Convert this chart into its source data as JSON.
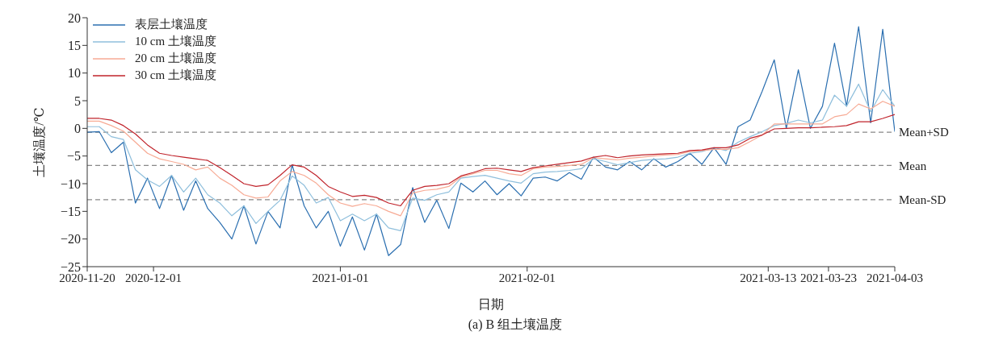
{
  "chart_data": {
    "type": "line",
    "title": "(a) B 组土壤温度",
    "xlabel": "日期",
    "ylabel": "土壤温度/℃",
    "x": [
      "2020-11-20",
      "2020-11-22",
      "2020-11-24",
      "2020-11-26",
      "2020-11-28",
      "2020-11-30",
      "2020-12-02",
      "2020-12-04",
      "2020-12-06",
      "2020-12-08",
      "2020-12-10",
      "2020-12-12",
      "2020-12-14",
      "2020-12-16",
      "2020-12-18",
      "2020-12-20",
      "2020-12-22",
      "2020-12-24",
      "2020-12-26",
      "2020-12-28",
      "2020-12-30",
      "2021-01-01",
      "2021-01-03",
      "2021-01-05",
      "2021-01-07",
      "2021-01-09",
      "2021-01-11",
      "2021-01-13",
      "2021-01-15",
      "2021-01-17",
      "2021-01-19",
      "2021-01-21",
      "2021-01-23",
      "2021-01-25",
      "2021-01-27",
      "2021-01-29",
      "2021-01-31",
      "2021-02-02",
      "2021-02-04",
      "2021-02-06",
      "2021-02-08",
      "2021-02-10",
      "2021-02-12",
      "2021-02-14",
      "2021-02-16",
      "2021-02-18",
      "2021-02-20",
      "2021-02-22",
      "2021-02-24",
      "2021-02-26",
      "2021-02-28",
      "2021-03-02",
      "2021-03-04",
      "2021-03-06",
      "2021-03-08",
      "2021-03-10",
      "2021-03-12",
      "2021-03-14",
      "2021-03-16",
      "2021-03-18",
      "2021-03-20",
      "2021-03-22",
      "2021-03-24",
      "2021-03-26",
      "2021-03-28",
      "2021-03-30",
      "2021-04-01",
      "2021-04-03"
    ],
    "series": [
      {
        "name": "表层土壤温度",
        "color": "#2b6fb0",
        "values": [
          -0.7,
          -0.6,
          -4.4,
          -2.5,
          -13.5,
          -9.0,
          -14.5,
          -8.5,
          -14.8,
          -9.5,
          -14.5,
          -17.0,
          -20.0,
          -14.0,
          -20.9,
          -15.0,
          -18.0,
          -6.6,
          -14.0,
          -18.0,
          -15.0,
          -21.3,
          -16.0,
          -22.0,
          -15.5,
          -23.0,
          -21.0,
          -10.7,
          -17.0,
          -13.0,
          -18.1,
          -9.9,
          -11.5,
          -9.5,
          -12.0,
          -10.0,
          -12.2,
          -9.0,
          -8.8,
          -9.5,
          -8.0,
          -9.2,
          -5.2,
          -7.0,
          -7.5,
          -6.0,
          -7.5,
          -5.5,
          -7.0,
          -6.0,
          -4.5,
          -6.5,
          -3.5,
          -6.5,
          0.3,
          1.5,
          6.7,
          12.4,
          0.0,
          10.6,
          0.0,
          4.0,
          15.4,
          4.0,
          18.4,
          1.0,
          17.9,
          -0.6
        ]
      },
      {
        "name": "10 cm 土壤温度",
        "color": "#8fbfdc",
        "values": [
          0.3,
          0.3,
          -1.5,
          -2.0,
          -7.5,
          -9.3,
          -10.5,
          -8.5,
          -11.5,
          -9.0,
          -12.0,
          -13.5,
          -15.8,
          -14.0,
          -17.2,
          -15.0,
          -13.0,
          -8.6,
          -10.3,
          -13.5,
          -12.5,
          -16.7,
          -15.5,
          -16.7,
          -15.5,
          -18.0,
          -18.5,
          -12.6,
          -13.0,
          -12.0,
          -11.5,
          -9.0,
          -8.7,
          -8.5,
          -9.0,
          -9.5,
          -9.9,
          -8.2,
          -7.9,
          -7.8,
          -7.6,
          -7.3,
          -5.5,
          -6.0,
          -6.6,
          -6.2,
          -5.8,
          -5.6,
          -5.5,
          -5.2,
          -4.5,
          -4.2,
          -3.5,
          -4.0,
          -2.5,
          -1.5,
          -0.6,
          0.5,
          0.9,
          1.5,
          1.0,
          1.5,
          6.0,
          4.0,
          8.0,
          3.0,
          7.0,
          4.0
        ]
      },
      {
        "name": "20 cm 土壤温度",
        "color": "#f7aa94",
        "values": [
          1.3,
          1.3,
          0.5,
          -0.5,
          -2.5,
          -4.5,
          -5.5,
          -6.0,
          -6.5,
          -7.5,
          -7.0,
          -9.0,
          -10.3,
          -12.0,
          -12.6,
          -12.4,
          -9.5,
          -7.8,
          -8.5,
          -9.9,
          -12.0,
          -13.5,
          -14.1,
          -13.6,
          -14.0,
          -15.0,
          -15.8,
          -11.7,
          -11.2,
          -11.0,
          -10.5,
          -8.8,
          -8.2,
          -7.6,
          -7.6,
          -8.2,
          -8.5,
          -7.3,
          -7.0,
          -6.9,
          -6.7,
          -6.5,
          -5.3,
          -5.5,
          -5.7,
          -5.4,
          -5.2,
          -5.0,
          -4.8,
          -4.7,
          -4.2,
          -4.0,
          -3.8,
          -3.8,
          -3.5,
          -2.4,
          -1.2,
          0.8,
          0.8,
          0.8,
          0.8,
          0.8,
          2.1,
          2.5,
          4.4,
          3.5,
          4.9,
          4.0
        ]
      },
      {
        "name": "30 cm 土壤温度",
        "color": "#c0232b",
        "values": [
          1.8,
          1.8,
          1.5,
          0.5,
          -1.0,
          -3.0,
          -4.5,
          -4.9,
          -5.2,
          -5.5,
          -5.8,
          -7.1,
          -8.5,
          -10.0,
          -10.5,
          -10.2,
          -8.5,
          -6.6,
          -7.0,
          -8.5,
          -10.5,
          -11.5,
          -12.3,
          -12.1,
          -12.5,
          -13.5,
          -14.0,
          -11.2,
          -10.5,
          -10.3,
          -10.0,
          -8.6,
          -8.0,
          -7.3,
          -7.2,
          -7.5,
          -7.8,
          -7.1,
          -6.8,
          -6.5,
          -6.2,
          -5.9,
          -5.2,
          -4.9,
          -5.3,
          -5.0,
          -4.8,
          -4.7,
          -4.6,
          -4.5,
          -4.0,
          -3.9,
          -3.5,
          -3.5,
          -3.0,
          -1.8,
          -1.2,
          -0.1,
          0.0,
          0.1,
          0.1,
          0.2,
          0.3,
          0.5,
          1.2,
          1.2,
          1.8,
          2.5
        ]
      }
    ],
    "xlim": [
      "2020-11-20",
      "2021-04-03"
    ],
    "xticks": [
      "2020-11-20",
      "2020-12-01",
      "2021-01-01",
      "2021-02-01",
      "2021-03-13",
      "2021-03-23",
      "2021-04-03"
    ],
    "ylim": [
      -25,
      20
    ],
    "yticks": [
      -25,
      -20,
      -15,
      -10,
      -5,
      0,
      5,
      10,
      15,
      20
    ],
    "ref_lines": [
      {
        "axis": "y",
        "value": -0.7,
        "label": "Mean+SD",
        "color": "#888888",
        "line_style": "dashed"
      },
      {
        "axis": "y",
        "value": -6.7,
        "label": "Mean",
        "color": "#888888",
        "line_style": "dashed"
      },
      {
        "axis": "y",
        "value": -12.9,
        "label": "Mean-SD",
        "color": "#888888",
        "line_style": "dashed"
      }
    ],
    "grid": false,
    "legend": "top left",
    "marker": "none",
    "line_style": "solid"
  }
}
